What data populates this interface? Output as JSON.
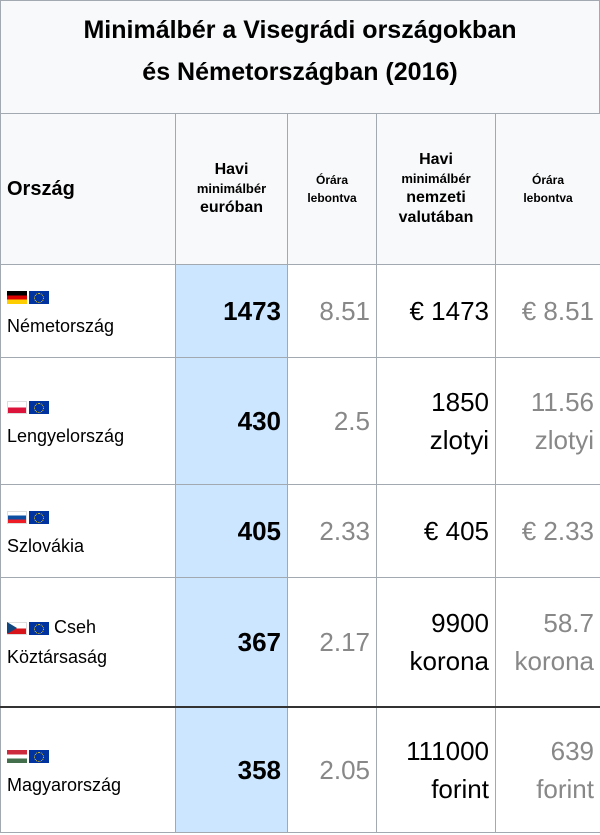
{
  "title_line1": "Minimálbér a Visegrádi országokban",
  "title_line2": "és Németországban (2016)",
  "headers": {
    "country": "Ország",
    "monthly_eur_1": "Havi",
    "monthly_eur_2": "minimálbér",
    "monthly_eur_3": "euróban",
    "hourly_1": "Órára",
    "hourly_2": "lebontva",
    "monthly_nat_1": "Havi",
    "monthly_nat_2": "minimálbér",
    "monthly_nat_3": "nemzeti",
    "monthly_nat_4": "valutában",
    "hourly2_1": "Órára",
    "hourly2_2": "lebontva"
  },
  "rows": [
    {
      "country": "Németország",
      "flag": "germany-flag",
      "eur": "1473",
      "hour_eur": "8.51",
      "nat_1": "€ 1473",
      "nat_2": "",
      "hour_nat_1": "€ 8.51",
      "hour_nat_2": ""
    },
    {
      "country": "Lengyelország",
      "flag": "poland-flag",
      "eur": "430",
      "hour_eur": "2.5",
      "nat_1": "1850",
      "nat_2": "zlotyi",
      "hour_nat_1": "11.56",
      "hour_nat_2": "zlotyi"
    },
    {
      "country": "Szlovákia",
      "flag": "slovakia-flag",
      "eur": "405",
      "hour_eur": "2.33",
      "nat_1": "€ 405",
      "nat_2": "",
      "hour_nat_1": "€ 2.33",
      "hour_nat_2": ""
    },
    {
      "country_1": "Cseh",
      "country": "Köztársaság",
      "flag": "czech-flag",
      "eur": "367",
      "hour_eur": "2.17",
      "nat_1": "9900",
      "nat_2": "korona",
      "hour_nat_1": "58.7",
      "hour_nat_2": "korona"
    },
    {
      "country": "Magyarország",
      "flag": "hungary-flag",
      "eur": "358",
      "hour_eur": "2.05",
      "nat_1": "111000",
      "nat_2": "forint",
      "hour_nat_1": "639",
      "hour_nat_2": "forint"
    }
  ],
  "colors": {
    "eur_column": "#cce6ff",
    "header_bg": "#f8f9fa",
    "muted_text": "#888888"
  }
}
